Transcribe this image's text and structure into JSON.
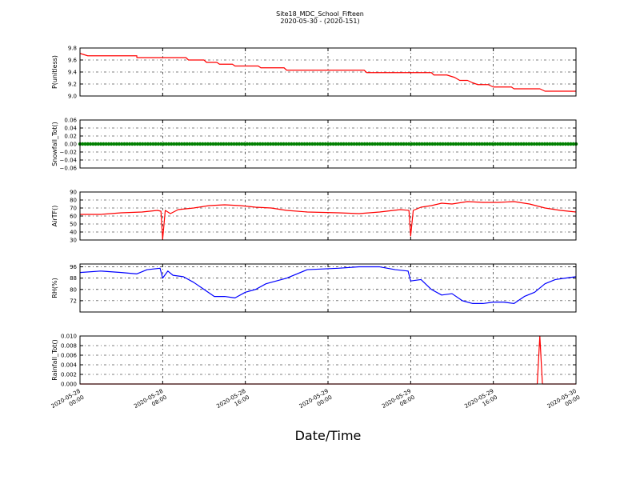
{
  "figure": {
    "title_line1": "Site18_MDC_School_Fifteen",
    "title_line2": "2020-05-30 - (2020-151)",
    "x_label": "Date/Time"
  },
  "chart_data": {
    "type": "line",
    "x_axis": {
      "start": "2020-05-28 00:00",
      "end": "2020-05-30 00:00",
      "ticks": [
        {
          "l1": "2020-05-28",
          "l2": "00:00",
          "t": "2020-05-28 00:00"
        },
        {
          "l1": "2020-05-28",
          "l2": "08:00",
          "t": "2020-05-28 08:00"
        },
        {
          "l1": "2020-05-28",
          "l2": "16:00",
          "t": "2020-05-28 16:00"
        },
        {
          "l1": "2020-05-29",
          "l2": "00:00",
          "t": "2020-05-29 00:00"
        },
        {
          "l1": "2020-05-29",
          "l2": "08:00",
          "t": "2020-05-29 08:00"
        },
        {
          "l1": "2020-05-29",
          "l2": "16:00",
          "t": "2020-05-29 16:00"
        },
        {
          "l1": "2020-05-30",
          "l2": "00:00",
          "t": "2020-05-30 00:00"
        }
      ],
      "grid": true
    },
    "panels": [
      {
        "ylabel": "P(unitless)",
        "ylim": [
          9.0,
          9.8
        ],
        "yticks": [
          "9.8",
          "9.6",
          "9.4",
          "9.2",
          "9.0"
        ],
        "ytick_values": [
          9.8,
          9.6,
          9.4,
          9.2,
          9.0
        ],
        "color": "#ff0000",
        "style": "line",
        "points": [
          [
            "2020-05-28 00:00",
            9.71
          ],
          [
            "2020-05-28 00:45",
            9.67
          ],
          [
            "2020-05-28 05:30",
            9.67
          ],
          [
            "2020-05-28 05:30",
            9.64
          ],
          [
            "2020-05-28 10:15",
            9.64
          ],
          [
            "2020-05-28 10:30",
            9.6
          ],
          [
            "2020-05-28 12:00",
            9.6
          ],
          [
            "2020-05-28 12:15",
            9.56
          ],
          [
            "2020-05-28 13:15",
            9.56
          ],
          [
            "2020-05-28 13:30",
            9.53
          ],
          [
            "2020-05-28 14:45",
            9.53
          ],
          [
            "2020-05-28 15:00",
            9.5
          ],
          [
            "2020-05-28 17:15",
            9.5
          ],
          [
            "2020-05-28 17:30",
            9.47
          ],
          [
            "2020-05-28 19:45",
            9.47
          ],
          [
            "2020-05-28 20:00",
            9.43
          ],
          [
            "2020-05-29 01:30",
            9.43
          ],
          [
            "2020-05-29 03:30",
            9.43
          ],
          [
            "2020-05-29 03:45",
            9.39
          ],
          [
            "2020-05-29 10:00",
            9.39
          ],
          [
            "2020-05-29 10:15",
            9.35
          ],
          [
            "2020-05-29 11:30",
            9.35
          ],
          [
            "2020-05-29 12:15",
            9.31
          ],
          [
            "2020-05-29 12:45",
            9.26
          ],
          [
            "2020-05-29 13:30",
            9.26
          ],
          [
            "2020-05-29 14:00",
            9.22
          ],
          [
            "2020-05-29 14:30",
            9.19
          ],
          [
            "2020-05-29 15:30",
            9.19
          ],
          [
            "2020-05-29 16:00",
            9.15
          ],
          [
            "2020-05-29 17:45",
            9.15
          ],
          [
            "2020-05-29 18:00",
            9.12
          ],
          [
            "2020-05-29 20:30",
            9.12
          ],
          [
            "2020-05-29 21:00",
            9.08
          ],
          [
            "2020-05-30 00:00",
            9.08
          ]
        ]
      },
      {
        "ylabel": "Snowfall_Tot()",
        "ylim": [
          -0.06,
          0.06
        ],
        "yticks": [
          "0.06",
          "0.04",
          "0.02",
          "0.00",
          "−0.02",
          "−0.04",
          "−0.06"
        ],
        "ytick_values": [
          0.06,
          0.04,
          0.02,
          0.0,
          -0.02,
          -0.04,
          -0.06
        ],
        "color": "#008000",
        "style": "markers",
        "points": [
          [
            "2020-05-28 00:00",
            0.0
          ],
          [
            "2020-05-30 00:00",
            0.0
          ]
        ]
      },
      {
        "ylabel": "AirTF()",
        "ylim": [
          30,
          90
        ],
        "yticks": [
          "90",
          "80",
          "70",
          "60",
          "50",
          "40",
          "30"
        ],
        "ytick_values": [
          90,
          80,
          70,
          60,
          50,
          40,
          30
        ],
        "color": "#ff0000",
        "style": "line",
        "points": [
          [
            "2020-05-28 00:00",
            62
          ],
          [
            "2020-05-28 02:00",
            62
          ],
          [
            "2020-05-28 04:00",
            64
          ],
          [
            "2020-05-28 06:00",
            65
          ],
          [
            "2020-05-28 07:30",
            67
          ],
          [
            "2020-05-28 07:50",
            66
          ],
          [
            "2020-05-28 08:00",
            31
          ],
          [
            "2020-05-28 08:15",
            67
          ],
          [
            "2020-05-28 08:45",
            63
          ],
          [
            "2020-05-28 09:30",
            68
          ],
          [
            "2020-05-28 11:00",
            70
          ],
          [
            "2020-05-28 12:30",
            73
          ],
          [
            "2020-05-28 14:00",
            74
          ],
          [
            "2020-05-28 15:30",
            73
          ],
          [
            "2020-05-28 17:00",
            71
          ],
          [
            "2020-05-28 18:30",
            70
          ],
          [
            "2020-05-28 20:00",
            67
          ],
          [
            "2020-05-28 22:00",
            65
          ],
          [
            "2020-05-29 01:00",
            64
          ],
          [
            "2020-05-29 03:00",
            63
          ],
          [
            "2020-05-29 05:00",
            65
          ],
          [
            "2020-05-29 07:00",
            68
          ],
          [
            "2020-05-29 07:50",
            67
          ],
          [
            "2020-05-29 08:00",
            35
          ],
          [
            "2020-05-29 08:15",
            67
          ],
          [
            "2020-05-29 09:00",
            71
          ],
          [
            "2020-05-29 10:00",
            73
          ],
          [
            "2020-05-29 11:00",
            76
          ],
          [
            "2020-05-29 12:00",
            75
          ],
          [
            "2020-05-29 13:30",
            78
          ],
          [
            "2020-05-29 15:00",
            77
          ],
          [
            "2020-05-29 16:30",
            77
          ],
          [
            "2020-05-29 18:00",
            78
          ],
          [
            "2020-05-29 19:30",
            75
          ],
          [
            "2020-05-29 21:00",
            70
          ],
          [
            "2020-05-29 22:30",
            67
          ],
          [
            "2020-05-30 00:00",
            65
          ]
        ]
      },
      {
        "ylabel": "RH(%)",
        "ylim": [
          64,
          98
        ],
        "yticks": [
          "96",
          "88",
          "80",
          "72"
        ],
        "ytick_values": [
          96,
          88,
          80,
          72
        ],
        "color": "#0000ff",
        "style": "line",
        "points": [
          [
            "2020-05-28 00:00",
            92
          ],
          [
            "2020-05-28 02:00",
            93
          ],
          [
            "2020-05-28 04:00",
            92
          ],
          [
            "2020-05-28 05:30",
            91
          ],
          [
            "2020-05-28 06:30",
            94
          ],
          [
            "2020-05-28 07:45",
            95
          ],
          [
            "2020-05-28 08:00",
            88
          ],
          [
            "2020-05-28 08:30",
            93
          ],
          [
            "2020-05-28 09:00",
            90
          ],
          [
            "2020-05-28 10:00",
            89
          ],
          [
            "2020-05-28 11:00",
            85
          ],
          [
            "2020-05-28 12:00",
            80
          ],
          [
            "2020-05-28 13:00",
            75
          ],
          [
            "2020-05-28 14:00",
            75
          ],
          [
            "2020-05-28 15:00",
            74
          ],
          [
            "2020-05-28 16:00",
            78
          ],
          [
            "2020-05-28 17:00",
            80
          ],
          [
            "2020-05-28 18:00",
            84
          ],
          [
            "2020-05-28 19:00",
            86
          ],
          [
            "2020-05-28 20:00",
            88
          ],
          [
            "2020-05-28 22:00",
            94
          ],
          [
            "2020-05-29 01:00",
            95
          ],
          [
            "2020-05-29 03:00",
            96
          ],
          [
            "2020-05-29 05:00",
            96
          ],
          [
            "2020-05-29 06:30",
            94
          ],
          [
            "2020-05-29 07:45",
            93
          ],
          [
            "2020-05-29 08:00",
            86
          ],
          [
            "2020-05-29 09:00",
            87
          ],
          [
            "2020-05-29 10:00",
            80
          ],
          [
            "2020-05-29 11:00",
            76
          ],
          [
            "2020-05-29 12:00",
            77
          ],
          [
            "2020-05-29 13:00",
            72
          ],
          [
            "2020-05-29 14:00",
            70
          ],
          [
            "2020-05-29 15:00",
            70
          ],
          [
            "2020-05-29 16:00",
            71
          ],
          [
            "2020-05-29 17:00",
            71
          ],
          [
            "2020-05-29 18:00",
            70
          ],
          [
            "2020-05-29 19:00",
            75
          ],
          [
            "2020-05-29 20:00",
            78
          ],
          [
            "2020-05-29 21:00",
            84
          ],
          [
            "2020-05-29 22:00",
            87
          ],
          [
            "2020-05-29 23:00",
            88
          ],
          [
            "2020-05-30 00:00",
            89
          ]
        ]
      },
      {
        "ylabel": "Rainfall_Tot()",
        "ylim": [
          0.0,
          0.01
        ],
        "yticks": [
          "0.010",
          "0.008",
          "0.006",
          "0.004",
          "0.002",
          "0.000"
        ],
        "ytick_values": [
          0.01,
          0.008,
          0.006,
          0.004,
          0.002,
          0.0
        ],
        "color": "#ff0000",
        "style": "line",
        "points": [
          [
            "2020-05-28 00:00",
            0.0
          ],
          [
            "2020-05-29 20:15",
            0.0
          ],
          [
            "2020-05-29 20:30",
            0.01
          ],
          [
            "2020-05-29 20:45",
            0.0
          ],
          [
            "2020-05-30 00:00",
            0.0
          ]
        ]
      }
    ]
  }
}
